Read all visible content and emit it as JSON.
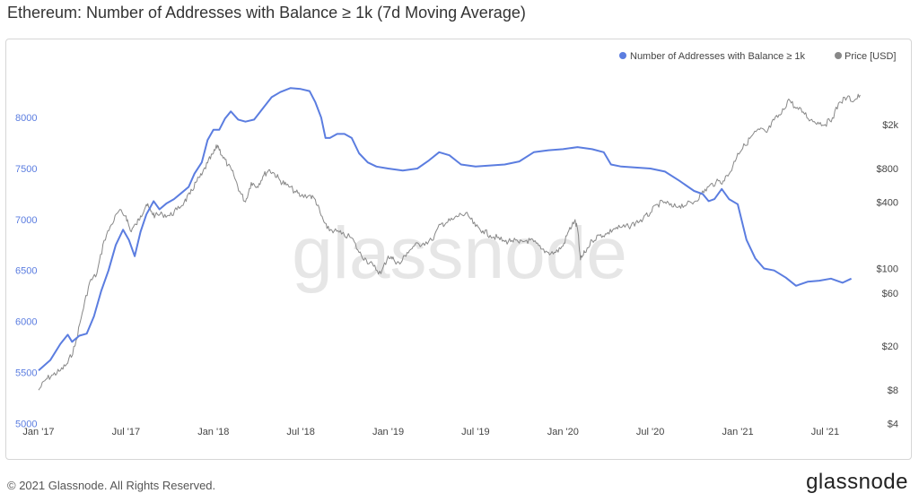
{
  "title": "Ethereum: Number of Addresses with Balance ≥ 1k (7d Moving Average)",
  "footer": {
    "copyright": "© 2021 Glassnode. All Rights Reserved.",
    "brand": "glassnode",
    "watermark": "glassnode"
  },
  "colors": {
    "addresses": "#5b7de0",
    "price": "#888888"
  },
  "chart_data": {
    "type": "line",
    "title": "Ethereum: Number of Addresses with Balance ≥ 1k (7d Moving Average)",
    "x_tick_labels": [
      {
        "label": "Jan '17",
        "t": 0
      },
      {
        "label": "Jul '17",
        "t": 6
      },
      {
        "label": "Jan '18",
        "t": 12
      },
      {
        "label": "Jul '18",
        "t": 18
      },
      {
        "label": "Jan '19",
        "t": 24
      },
      {
        "label": "Jul '19",
        "t": 30
      },
      {
        "label": "Jan '20",
        "t": 36
      },
      {
        "label": "Jul '20",
        "t": 42
      },
      {
        "label": "Jan '21",
        "t": 48
      },
      {
        "label": "Jul '21",
        "t": 54
      }
    ],
    "x_unit": "months since Jan 2017",
    "xlim": [
      0,
      56.5
    ],
    "y_left": {
      "label": "Number of Addresses with Balance ≥ 1k",
      "ticks": [
        5000,
        5500,
        6000,
        6500,
        7000,
        7500,
        8000
      ],
      "range": [
        4950,
        8450
      ]
    },
    "y_right": {
      "label": "Price [USD]",
      "scale": "log",
      "ticks": [
        4,
        8,
        20,
        60,
        100,
        400,
        800,
        2000
      ],
      "tick_labels": [
        "$4",
        "$8",
        "$20",
        "$60",
        "$100",
        "$400",
        "$800",
        "$2k"
      ],
      "range": [
        3.6,
        6000
      ]
    },
    "legend_position": "top-right",
    "series": [
      {
        "name": "Number of Addresses with Balance ≥ 1k",
        "axis": "left",
        "color": "#5b7de0",
        "points": [
          [
            0.0,
            5520
          ],
          [
            0.8,
            5620
          ],
          [
            1.5,
            5780
          ],
          [
            2.0,
            5870
          ],
          [
            2.3,
            5800
          ],
          [
            2.8,
            5860
          ],
          [
            3.3,
            5880
          ],
          [
            3.8,
            6050
          ],
          [
            4.3,
            6300
          ],
          [
            4.8,
            6500
          ],
          [
            5.3,
            6750
          ],
          [
            5.8,
            6900
          ],
          [
            6.2,
            6800
          ],
          [
            6.6,
            6640
          ],
          [
            7.0,
            6880
          ],
          [
            7.4,
            7050
          ],
          [
            7.9,
            7180
          ],
          [
            8.3,
            7100
          ],
          [
            8.8,
            7160
          ],
          [
            9.3,
            7200
          ],
          [
            9.8,
            7260
          ],
          [
            10.3,
            7320
          ],
          [
            10.7,
            7450
          ],
          [
            11.2,
            7560
          ],
          [
            11.6,
            7780
          ],
          [
            12.0,
            7880
          ],
          [
            12.4,
            7880
          ],
          [
            12.8,
            7990
          ],
          [
            13.2,
            8060
          ],
          [
            13.7,
            7980
          ],
          [
            14.2,
            7960
          ],
          [
            14.8,
            7980
          ],
          [
            15.4,
            8090
          ],
          [
            16.0,
            8200
          ],
          [
            16.6,
            8250
          ],
          [
            17.3,
            8290
          ],
          [
            18.0,
            8280
          ],
          [
            18.6,
            8260
          ],
          [
            19.0,
            8150
          ],
          [
            19.4,
            8000
          ],
          [
            19.7,
            7800
          ],
          [
            20.0,
            7800
          ],
          [
            20.5,
            7840
          ],
          [
            21.0,
            7840
          ],
          [
            21.5,
            7800
          ],
          [
            22.0,
            7650
          ],
          [
            22.6,
            7560
          ],
          [
            23.2,
            7520
          ],
          [
            24.0,
            7500
          ],
          [
            25.0,
            7480
          ],
          [
            26.0,
            7500
          ],
          [
            26.8,
            7580
          ],
          [
            27.5,
            7660
          ],
          [
            28.2,
            7630
          ],
          [
            29.0,
            7540
          ],
          [
            30.0,
            7520
          ],
          [
            31.0,
            7530
          ],
          [
            32.0,
            7540
          ],
          [
            33.0,
            7570
          ],
          [
            34.0,
            7660
          ],
          [
            35.0,
            7680
          ],
          [
            36.0,
            7690
          ],
          [
            37.0,
            7710
          ],
          [
            38.0,
            7690
          ],
          [
            38.8,
            7660
          ],
          [
            39.3,
            7540
          ],
          [
            40.0,
            7520
          ],
          [
            41.0,
            7510
          ],
          [
            42.0,
            7500
          ],
          [
            43.0,
            7470
          ],
          [
            44.0,
            7380
          ],
          [
            45.0,
            7280
          ],
          [
            45.6,
            7250
          ],
          [
            46.0,
            7180
          ],
          [
            46.4,
            7200
          ],
          [
            46.9,
            7300
          ],
          [
            47.4,
            7200
          ],
          [
            48.0,
            7150
          ],
          [
            48.6,
            6800
          ],
          [
            49.2,
            6620
          ],
          [
            49.8,
            6520
          ],
          [
            50.5,
            6500
          ],
          [
            51.3,
            6430
          ],
          [
            52.0,
            6350
          ],
          [
            52.8,
            6390
          ],
          [
            53.6,
            6400
          ],
          [
            54.4,
            6420
          ],
          [
            55.2,
            6380
          ],
          [
            55.8,
            6420
          ]
        ]
      },
      {
        "name": "Price [USD]",
        "axis": "right",
        "color": "#888888",
        "points": [
          [
            0.0,
            8
          ],
          [
            0.5,
            10
          ],
          [
            1.0,
            11
          ],
          [
            1.5,
            12
          ],
          [
            2.0,
            14
          ],
          [
            2.5,
            20
          ],
          [
            3.0,
            40
          ],
          [
            3.5,
            75
          ],
          [
            4.0,
            90
          ],
          [
            4.5,
            180
          ],
          [
            5.0,
            250
          ],
          [
            5.5,
            330
          ],
          [
            6.0,
            300
          ],
          [
            6.3,
            220
          ],
          [
            6.7,
            250
          ],
          [
            7.0,
            300
          ],
          [
            7.4,
            380
          ],
          [
            7.7,
            330
          ],
          [
            8.0,
            300
          ],
          [
            8.5,
            310
          ],
          [
            9.0,
            300
          ],
          [
            9.5,
            340
          ],
          [
            10.0,
            400
          ],
          [
            10.4,
            470
          ],
          [
            10.8,
            600
          ],
          [
            11.2,
            700
          ],
          [
            11.6,
            900
          ],
          [
            12.0,
            1100
          ],
          [
            12.3,
            1300
          ],
          [
            12.6,
            1050
          ],
          [
            13.0,
            860
          ],
          [
            13.4,
            700
          ],
          [
            13.8,
            500
          ],
          [
            14.2,
            400
          ],
          [
            14.6,
            600
          ],
          [
            15.0,
            550
          ],
          [
            15.4,
            680
          ],
          [
            15.8,
            780
          ],
          [
            16.2,
            720
          ],
          [
            16.6,
            620
          ],
          [
            17.0,
            570
          ],
          [
            17.6,
            500
          ],
          [
            18.0,
            450
          ],
          [
            18.6,
            460
          ],
          [
            19.0,
            420
          ],
          [
            19.4,
            300
          ],
          [
            19.8,
            230
          ],
          [
            20.3,
            220
          ],
          [
            20.8,
            205
          ],
          [
            21.5,
            190
          ],
          [
            22.0,
            140
          ],
          [
            22.5,
            120
          ],
          [
            23.0,
            105
          ],
          [
            23.5,
            90
          ],
          [
            24.0,
            130
          ],
          [
            24.4,
            120
          ],
          [
            24.8,
            110
          ],
          [
            25.3,
            140
          ],
          [
            25.8,
            160
          ],
          [
            26.4,
            170
          ],
          [
            27.0,
            180
          ],
          [
            27.6,
            250
          ],
          [
            28.0,
            260
          ],
          [
            28.5,
            280
          ],
          [
            29.0,
            310
          ],
          [
            29.5,
            300
          ],
          [
            30.0,
            240
          ],
          [
            30.5,
            220
          ],
          [
            31.0,
            200
          ],
          [
            31.5,
            190
          ],
          [
            32.0,
            175
          ],
          [
            32.5,
            180
          ],
          [
            33.0,
            170
          ],
          [
            33.5,
            180
          ],
          [
            34.0,
            175
          ],
          [
            34.5,
            150
          ],
          [
            35.0,
            140
          ],
          [
            35.5,
            140
          ],
          [
            36.0,
            160
          ],
          [
            36.4,
            220
          ],
          [
            36.8,
            270
          ],
          [
            37.0,
            230
          ],
          [
            37.2,
            120
          ],
          [
            37.5,
            140
          ],
          [
            38.0,
            180
          ],
          [
            38.5,
            200
          ],
          [
            39.0,
            205
          ],
          [
            39.5,
            230
          ],
          [
            40.0,
            235
          ],
          [
            40.5,
            240
          ],
          [
            41.0,
            260
          ],
          [
            41.5,
            280
          ],
          [
            42.0,
            320
          ],
          [
            42.5,
            380
          ],
          [
            43.0,
            400
          ],
          [
            43.5,
            360
          ],
          [
            44.0,
            370
          ],
          [
            44.5,
            380
          ],
          [
            45.0,
            400
          ],
          [
            45.5,
            470
          ],
          [
            46.0,
            550
          ],
          [
            46.5,
            600
          ],
          [
            47.0,
            620
          ],
          [
            47.5,
            750
          ],
          [
            48.0,
            1100
          ],
          [
            48.5,
            1300
          ],
          [
            49.0,
            1600
          ],
          [
            49.5,
            1800
          ],
          [
            50.0,
            1700
          ],
          [
            50.5,
            2200
          ],
          [
            51.0,
            2500
          ],
          [
            51.5,
            3400
          ],
          [
            52.0,
            2800
          ],
          [
            52.5,
            2600
          ],
          [
            53.0,
            2200
          ],
          [
            53.5,
            2100
          ],
          [
            54.0,
            2000
          ],
          [
            54.5,
            2300
          ],
          [
            55.0,
            3200
          ],
          [
            55.5,
            3500
          ],
          [
            56.0,
            3300
          ],
          [
            56.4,
            3700
          ]
        ]
      }
    ]
  }
}
